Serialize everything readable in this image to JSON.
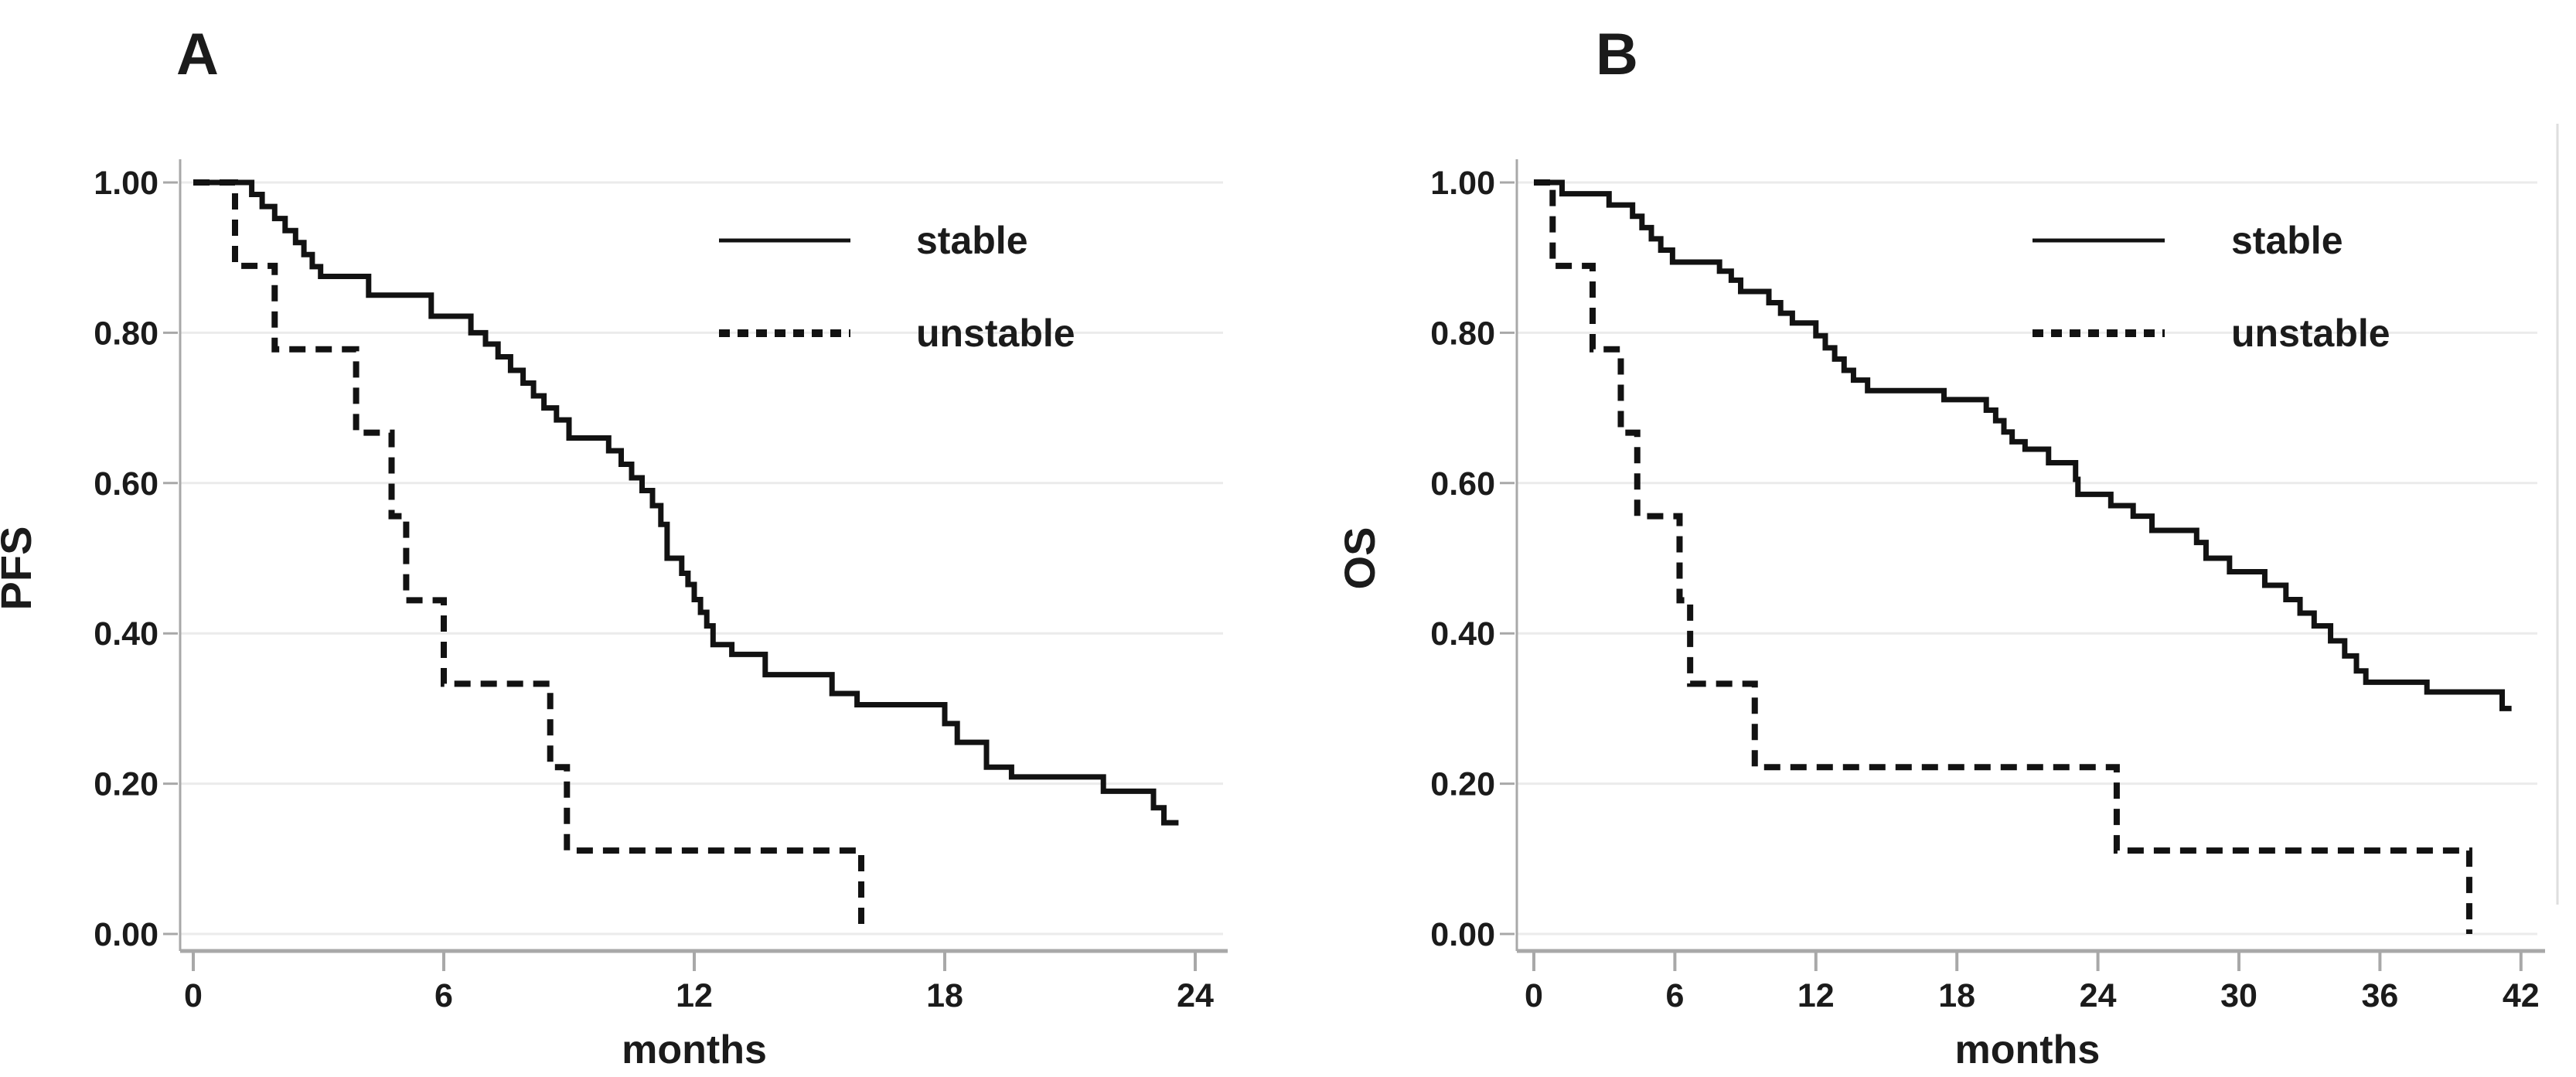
{
  "figure": {
    "panel_labels": [
      "A",
      "B"
    ],
    "background": "#ffffff"
  },
  "colors": {
    "curve": "#121212",
    "grid": "#ebebeb",
    "axis": "#a8a8a8",
    "text": "#1b1b1b",
    "edge_line": "#dedede",
    "background": "#ffffff"
  },
  "chart_data": [
    {
      "type": "line",
      "subtype": "kaplan-meier-step",
      "panel_label": "A",
      "title": "",
      "xlabel": "months",
      "ylabel": "PFS",
      "xlim": [
        0,
        24.6
      ],
      "ylim": [
        0,
        1
      ],
      "x_ticks": [
        0,
        6,
        12,
        18,
        24
      ],
      "y_tick_labels": [
        "1.00",
        "0.80",
        "0.60",
        "0.40",
        "0.20",
        "0.00"
      ],
      "y_tick_values": [
        1.0,
        0.8,
        0.6,
        0.4,
        0.2,
        0.0
      ],
      "grid": "horizontal",
      "legend": {
        "position": "upper right",
        "entries": [
          {
            "label": "stable",
            "line": "solid"
          },
          {
            "label": "unstable",
            "line": "dashed"
          }
        ]
      },
      "series": [
        {
          "name": "stable",
          "line": "solid",
          "start": [
            0,
            1.0
          ],
          "end_time": 23.6,
          "points": [
            [
              1.4,
              0.984
            ],
            [
              1.65,
              0.968
            ],
            [
              1.95,
              0.952
            ],
            [
              2.2,
              0.936
            ],
            [
              2.45,
              0.92
            ],
            [
              2.65,
              0.904
            ],
            [
              2.85,
              0.888
            ],
            [
              3.05,
              0.875
            ],
            [
              4.2,
              0.85
            ],
            [
              5.7,
              0.822
            ],
            [
              6.65,
              0.8
            ],
            [
              7.0,
              0.785
            ],
            [
              7.3,
              0.768
            ],
            [
              7.6,
              0.75
            ],
            [
              7.9,
              0.733
            ],
            [
              8.15,
              0.716
            ],
            [
              8.4,
              0.7
            ],
            [
              8.7,
              0.684
            ],
            [
              9.0,
              0.66
            ],
            [
              9.95,
              0.643
            ],
            [
              10.25,
              0.625
            ],
            [
              10.5,
              0.607
            ],
            [
              10.75,
              0.59
            ],
            [
              11.0,
              0.57
            ],
            [
              11.2,
              0.545
            ],
            [
              11.35,
              0.5
            ],
            [
              11.7,
              0.48
            ],
            [
              11.85,
              0.465
            ],
            [
              12.0,
              0.445
            ],
            [
              12.15,
              0.428
            ],
            [
              12.3,
              0.41
            ],
            [
              12.45,
              0.385
            ],
            [
              12.9,
              0.372
            ],
            [
              13.7,
              0.345
            ],
            [
              15.3,
              0.32
            ],
            [
              15.9,
              0.305
            ],
            [
              18.0,
              0.28
            ],
            [
              18.3,
              0.255
            ],
            [
              19.0,
              0.222
            ],
            [
              19.6,
              0.209
            ],
            [
              21.8,
              0.19
            ],
            [
              23.0,
              0.168
            ],
            [
              23.25,
              0.148
            ]
          ]
        },
        {
          "name": "unstable",
          "line": "dashed",
          "start": [
            0,
            1.0
          ],
          "end_time": 16.0,
          "points": [
            [
              1.0,
              0.889
            ],
            [
              1.95,
              0.778
            ],
            [
              3.9,
              0.667
            ],
            [
              4.75,
              0.556
            ],
            [
              5.1,
              0.444
            ],
            [
              6.0,
              0.333
            ],
            [
              8.55,
              0.222
            ],
            [
              8.95,
              0.111
            ],
            [
              16.0,
              0.0
            ]
          ]
        }
      ]
    },
    {
      "type": "line",
      "subtype": "kaplan-meier-step",
      "panel_label": "B",
      "title": "",
      "xlabel": "months",
      "ylabel": "OS",
      "xlim": [
        0,
        43
      ],
      "ylim": [
        0,
        1
      ],
      "x_ticks": [
        0,
        6,
        12,
        18,
        24,
        30,
        36,
        42
      ],
      "y_tick_labels": [
        "1.00",
        "0.80",
        "0.60",
        "0.40",
        "0.20",
        "0.00"
      ],
      "y_tick_values": [
        1.0,
        0.8,
        0.6,
        0.4,
        0.2,
        0.0
      ],
      "grid": "horizontal",
      "legend": {
        "position": "upper right",
        "entries": [
          {
            "label": "stable",
            "line": "solid"
          },
          {
            "label": "unstable",
            "line": "dashed"
          }
        ]
      },
      "series": [
        {
          "name": "stable",
          "line": "solid",
          "start": [
            0,
            1.0
          ],
          "end_time": 41.6,
          "points": [
            [
              1.2,
              0.985
            ],
            [
              3.2,
              0.97
            ],
            [
              4.2,
              0.955
            ],
            [
              4.6,
              0.94
            ],
            [
              5.0,
              0.925
            ],
            [
              5.4,
              0.91
            ],
            [
              5.9,
              0.894
            ],
            [
              7.9,
              0.882
            ],
            [
              8.4,
              0.87
            ],
            [
              8.8,
              0.855
            ],
            [
              10.0,
              0.84
            ],
            [
              10.5,
              0.826
            ],
            [
              11.0,
              0.813
            ],
            [
              12.0,
              0.796
            ],
            [
              12.4,
              0.78
            ],
            [
              12.8,
              0.765
            ],
            [
              13.2,
              0.75
            ],
            [
              13.6,
              0.737
            ],
            [
              14.2,
              0.723
            ],
            [
              17.45,
              0.711
            ],
            [
              19.25,
              0.697
            ],
            [
              19.65,
              0.683
            ],
            [
              20.0,
              0.668
            ],
            [
              20.35,
              0.655
            ],
            [
              20.9,
              0.645
            ],
            [
              21.9,
              0.627
            ],
            [
              23.05,
              0.605
            ],
            [
              23.15,
              0.585
            ],
            [
              24.55,
              0.57
            ],
            [
              25.5,
              0.556
            ],
            [
              26.3,
              0.537
            ],
            [
              28.2,
              0.521
            ],
            [
              28.6,
              0.5
            ],
            [
              29.6,
              0.482
            ],
            [
              31.1,
              0.464
            ],
            [
              32.0,
              0.445
            ],
            [
              32.6,
              0.427
            ],
            [
              33.2,
              0.41
            ],
            [
              33.9,
              0.39
            ],
            [
              34.5,
              0.37
            ],
            [
              35.0,
              0.35
            ],
            [
              35.4,
              0.335
            ],
            [
              38.0,
              0.322
            ],
            [
              41.2,
              0.3
            ]
          ]
        },
        {
          "name": "unstable",
          "line": "dashed",
          "start": [
            0,
            1.0
          ],
          "end_time": 39.8,
          "points": [
            [
              0.8,
              0.889
            ],
            [
              2.5,
              0.778
            ],
            [
              3.7,
              0.667
            ],
            [
              4.4,
              0.556
            ],
            [
              6.2,
              0.444
            ],
            [
              6.65,
              0.333
            ],
            [
              9.4,
              0.222
            ],
            [
              24.8,
              0.111
            ],
            [
              39.8,
              0.0
            ]
          ]
        }
      ]
    }
  ]
}
